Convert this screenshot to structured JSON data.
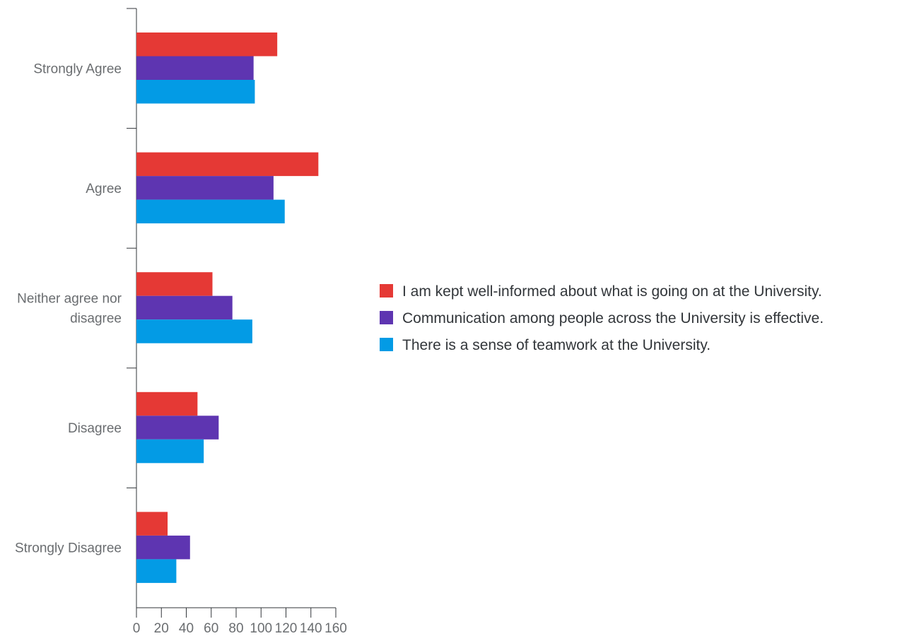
{
  "chart_data": {
    "type": "bar",
    "orientation": "horizontal",
    "categories": [
      "Strongly Agree",
      "Agree",
      "Neither agree nor disagree",
      "Disagree",
      "Strongly Disagree"
    ],
    "category_lines": [
      [
        "Strongly Agree"
      ],
      [
        "Agree"
      ],
      [
        "Neither agree nor",
        "disagree"
      ],
      [
        "Disagree"
      ],
      [
        "Strongly Disagree"
      ]
    ],
    "series": [
      {
        "name": "I am kept well-informed about what is going on at the University.",
        "color": "#e53935",
        "values": [
          113,
          146,
          61,
          49,
          25
        ]
      },
      {
        "name": "Communication among people across the University is effective.",
        "color": "#5e35b1",
        "values": [
          94,
          110,
          77,
          66,
          43
        ]
      },
      {
        "name": "There is a sense of teamwork at the University.",
        "color": "#039be5",
        "values": [
          95,
          119,
          93,
          54,
          32
        ]
      }
    ],
    "xlim": [
      0,
      160
    ],
    "xticks": [
      "0",
      "20",
      "40",
      "60",
      "80",
      "100",
      "120",
      "140",
      "160"
    ],
    "title": "",
    "xlabel": "",
    "ylabel": "",
    "grid": false,
    "legend_position": "right"
  }
}
